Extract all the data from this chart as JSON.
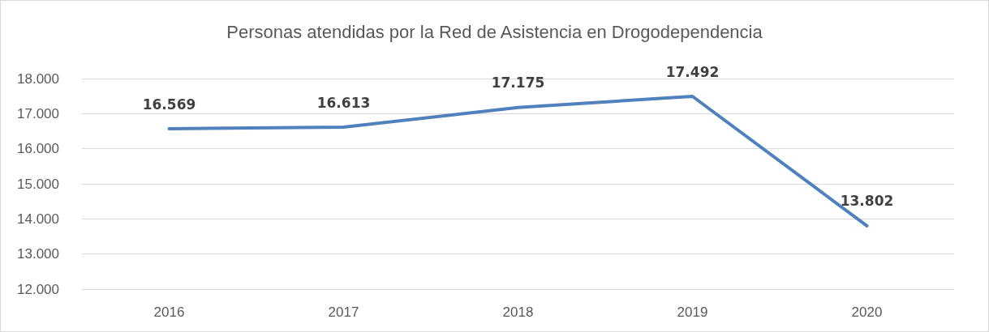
{
  "chart_data": {
    "type": "line",
    "title": "Personas atendidas por la Red de Asistencia en Drogodependencia",
    "categories": [
      "2016",
      "2017",
      "2018",
      "2019",
      "2020"
    ],
    "series": [
      {
        "color": "#4f81bd",
        "values": [
          16569,
          16613,
          17175,
          17492,
          13802
        ],
        "value_labels": [
          "16.569",
          "16.613",
          "17.175",
          "17.492",
          "13.802"
        ]
      }
    ],
    "ylim": [
      12000,
      18000
    ],
    "yticks": [
      {
        "value": 12000,
        "label": "12.000"
      },
      {
        "value": 13000,
        "label": "13.000"
      },
      {
        "value": 14000,
        "label": "14.000"
      },
      {
        "value": 15000,
        "label": "15.000"
      },
      {
        "value": 16000,
        "label": "16.000"
      },
      {
        "value": 17000,
        "label": "17.000"
      },
      {
        "value": 18000,
        "label": "18.000"
      }
    ],
    "grid": "y",
    "marker": "none",
    "line_style": "solid"
  }
}
